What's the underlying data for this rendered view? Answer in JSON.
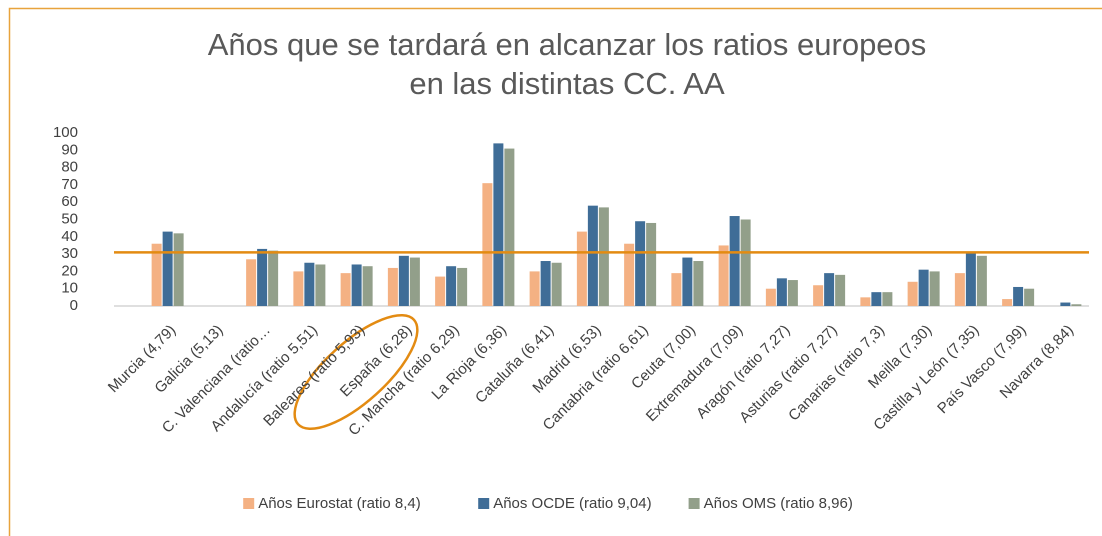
{
  "chart_data": {
    "type": "bar",
    "title": [
      "Años que se tardará en alcanzar los ratios europeos",
      "en las distintas CC. AA"
    ],
    "categories": [
      "Murcia (4,79)",
      "Galicia (5,13)",
      "C. Valenciana (ratio…",
      "Andalucía (ratio 5,51)",
      "Baleares (ratio 5,93)",
      "España (6,28)",
      "C. Mancha (ratio 6,29)",
      "La Rioja (6,36)",
      "Cataluña (6,41)",
      "Madrid (6,53)",
      "Cantabria (ratio 6,61)",
      "Ceuta (7,00)",
      "Extremadura (7,09)",
      "Aragón (ratio 7,27)",
      "Asturias (ratio 7,27)",
      "Canarias (ratio 7,3)",
      "Meilla (7,30)",
      "Castilla y León (7,35)",
      "País Vasco (7,99)",
      "Navarra (8,84)"
    ],
    "series": [
      {
        "name": "Años Eurostat (ratio 8,4)",
        "color": "#f4b183",
        "values": [
          36,
          null,
          27,
          20,
          19,
          22,
          17,
          71,
          20,
          43,
          36,
          19,
          35,
          10,
          12,
          5,
          14,
          19,
          4,
          0
        ]
      },
      {
        "name": "Años OCDE (ratio 9,04)",
        "color": "#3f6d97",
        "values": [
          43,
          null,
          33,
          25,
          24,
          29,
          23,
          94,
          26,
          58,
          49,
          28,
          52,
          16,
          19,
          8,
          21,
          31,
          11,
          2
        ]
      },
      {
        "name": "Años OMS (ratio 8,96)",
        "color": "#929f8a",
        "values": [
          42,
          null,
          32,
          24,
          23,
          28,
          22,
          91,
          25,
          57,
          48,
          26,
          50,
          15,
          18,
          8,
          20,
          29,
          10,
          1
        ]
      }
    ],
    "reference_line": {
      "value": 31,
      "color": "#e38b12"
    },
    "ylim": [
      0,
      100
    ],
    "yticks": [
      0,
      10,
      20,
      30,
      40,
      50,
      60,
      70,
      80,
      90,
      100
    ],
    "grid": false,
    "legend": "bottom"
  }
}
